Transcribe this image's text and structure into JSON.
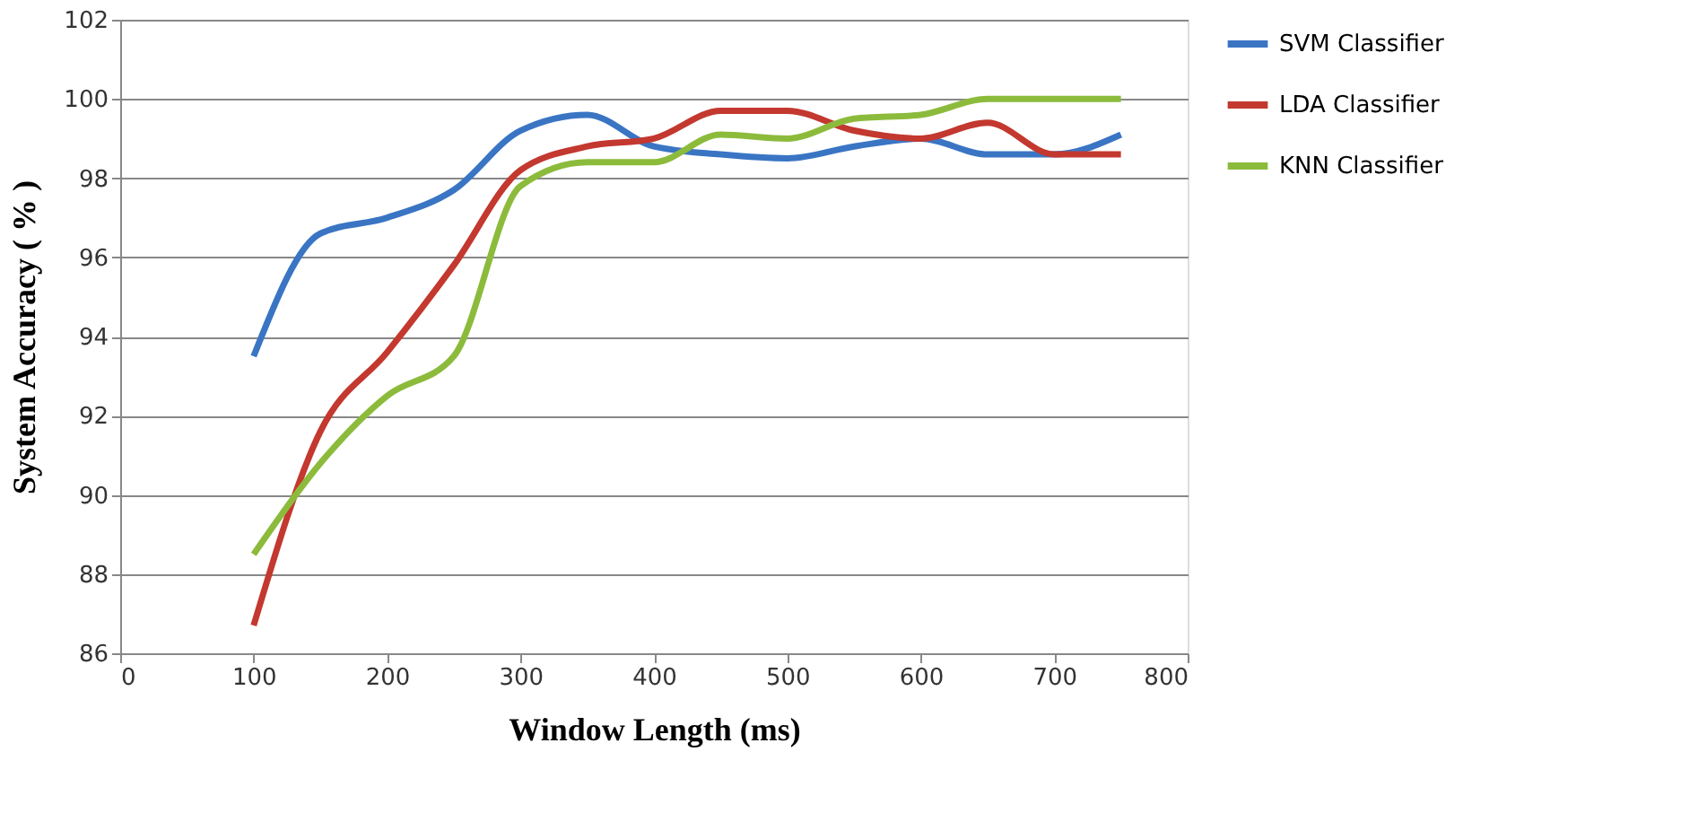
{
  "chart_data": {
    "type": "line",
    "xlabel": "Window Length (ms)",
    "ylabel": "System Accuracy ( % )",
    "x": [
      100,
      150,
      200,
      250,
      300,
      350,
      400,
      450,
      500,
      550,
      600,
      650,
      700,
      750
    ],
    "series": [
      {
        "name": "SVM Classifier",
        "color": "#3a75c4",
        "values": [
          93.5,
          96.6,
          97.0,
          97.7,
          99.2,
          99.6,
          98.8,
          98.6,
          98.5,
          98.8,
          99.0,
          98.6,
          98.6,
          99.1
        ]
      },
      {
        "name": "LDA Classifier",
        "color": "#c3382f",
        "values": [
          86.7,
          91.6,
          93.6,
          95.8,
          98.2,
          98.8,
          99.0,
          99.7,
          99.7,
          99.2,
          99.0,
          99.4,
          98.6,
          98.6
        ]
      },
      {
        "name": "KNN Classifier",
        "color": "#8cbb3c",
        "values": [
          88.5,
          90.8,
          92.5,
          93.5,
          97.8,
          98.4,
          98.4,
          99.1,
          99.0,
          99.5,
          99.6,
          100.0,
          100.0,
          100.0
        ]
      }
    ],
    "xlim": [
      0,
      800
    ],
    "xticks": [
      0,
      100,
      200,
      300,
      400,
      500,
      600,
      700,
      800
    ],
    "ylim": [
      86,
      102
    ],
    "yticks": [
      86,
      88,
      90,
      92,
      94,
      96,
      98,
      100,
      102
    ],
    "grid": "y",
    "legend": "right",
    "marker": "none",
    "line_style": "solid"
  }
}
